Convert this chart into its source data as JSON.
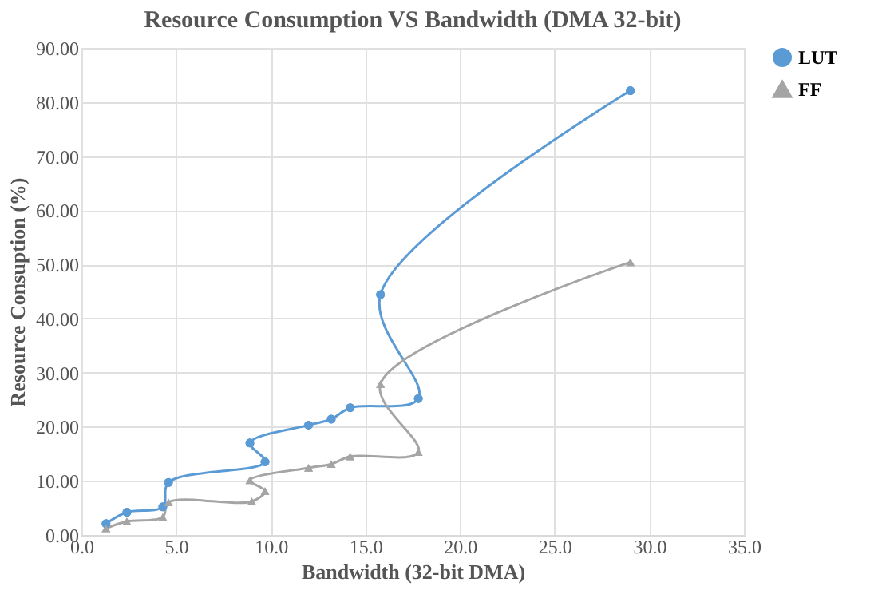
{
  "chart_data": {
    "type": "line",
    "title": "Resource Consumption VS Bandwidth (DMA 32-bit)",
    "xlabel": "Bandwidth (32-bit DMA)",
    "ylabel": "Resource Consuption (%)",
    "xlim": [
      0,
      35
    ],
    "ylim": [
      0,
      90
    ],
    "xticks": [
      {
        "value": 0,
        "label": "0.0"
      },
      {
        "value": 5,
        "label": "5.0"
      },
      {
        "value": 10,
        "label": "10.0"
      },
      {
        "value": 15,
        "label": "15.0"
      },
      {
        "value": 20,
        "label": "20.0"
      },
      {
        "value": 25,
        "label": "25.0"
      },
      {
        "value": 30,
        "label": "30.0"
      },
      {
        "value": 35,
        "label": "35.0"
      }
    ],
    "yticks": [
      {
        "value": 0,
        "label": "0.00"
      },
      {
        "value": 10,
        "label": "10.00"
      },
      {
        "value": 20,
        "label": "20.00"
      },
      {
        "value": 30,
        "label": "30.00"
      },
      {
        "value": 40,
        "label": "40.00"
      },
      {
        "value": 50,
        "label": "50.00"
      },
      {
        "value": 60,
        "label": "60.00"
      },
      {
        "value": 70,
        "label": "70.00"
      },
      {
        "value": 80,
        "label": "80.00"
      },
      {
        "value": 90,
        "label": "90.00"
      }
    ],
    "grid": true,
    "legend": "right",
    "line_style": "solid",
    "series": [
      {
        "name": "LUT",
        "color": "#5b9bd5",
        "marker": "circle",
        "x": [
          1.3,
          2.4,
          4.3,
          4.6,
          9.7,
          8.9,
          12.0,
          13.2,
          14.2,
          17.8,
          15.8,
          29.0
        ],
        "values": [
          2.1,
          4.2,
          5.2,
          9.7,
          13.5,
          17.0,
          20.3,
          21.4,
          23.5,
          25.2,
          44.4,
          82.1
        ]
      },
      {
        "name": "FF",
        "color": "#a5a5a5",
        "marker": "triangle",
        "x": [
          1.3,
          2.4,
          4.3,
          4.6,
          9.0,
          9.7,
          8.9,
          12.0,
          13.2,
          14.2,
          17.8,
          15.8,
          29.0
        ],
        "values": [
          1.2,
          2.5,
          3.3,
          6.0,
          6.2,
          8.1,
          10.1,
          12.4,
          13.1,
          14.5,
          15.3,
          27.9,
          50.4
        ]
      }
    ]
  }
}
